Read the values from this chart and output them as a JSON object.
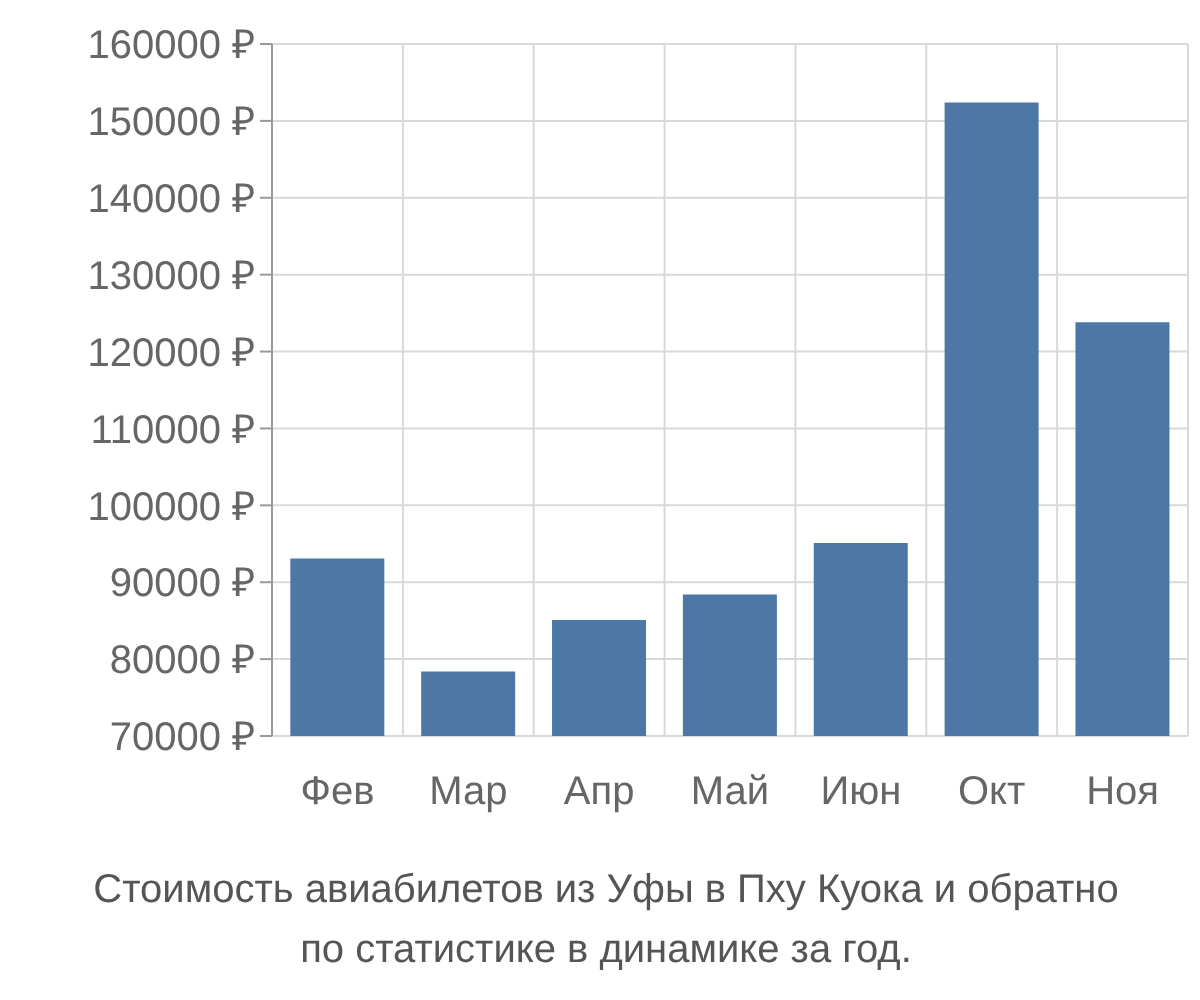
{
  "chart_data": {
    "type": "bar",
    "categories": [
      "Фев",
      "Мар",
      "Апр",
      "Май",
      "Июн",
      "Окт",
      "Ноя"
    ],
    "values": [
      93100,
      78400,
      85100,
      88400,
      95100,
      152400,
      123800
    ],
    "color": "#4d78a6",
    "ylim": [
      70000,
      160000
    ],
    "yticks": [
      {
        "value": 70000,
        "label": "70000 ₽"
      },
      {
        "value": 80000,
        "label": "80000 ₽"
      },
      {
        "value": 90000,
        "label": "90000 ₽"
      },
      {
        "value": 100000,
        "label": "100000 ₽"
      },
      {
        "value": 110000,
        "label": "110000 ₽"
      },
      {
        "value": 120000,
        "label": "120000 ₽"
      },
      {
        "value": 130000,
        "label": "130000 ₽"
      },
      {
        "value": 140000,
        "label": "140000 ₽"
      },
      {
        "value": 150000,
        "label": "150000 ₽"
      },
      {
        "value": 160000,
        "label": "160000 ₽"
      }
    ],
    "grid": true,
    "annotations": [
      "Стоимость авиабилетов из Уфы в Пху Куока и обратно",
      "по статистике в динамике за год."
    ]
  }
}
